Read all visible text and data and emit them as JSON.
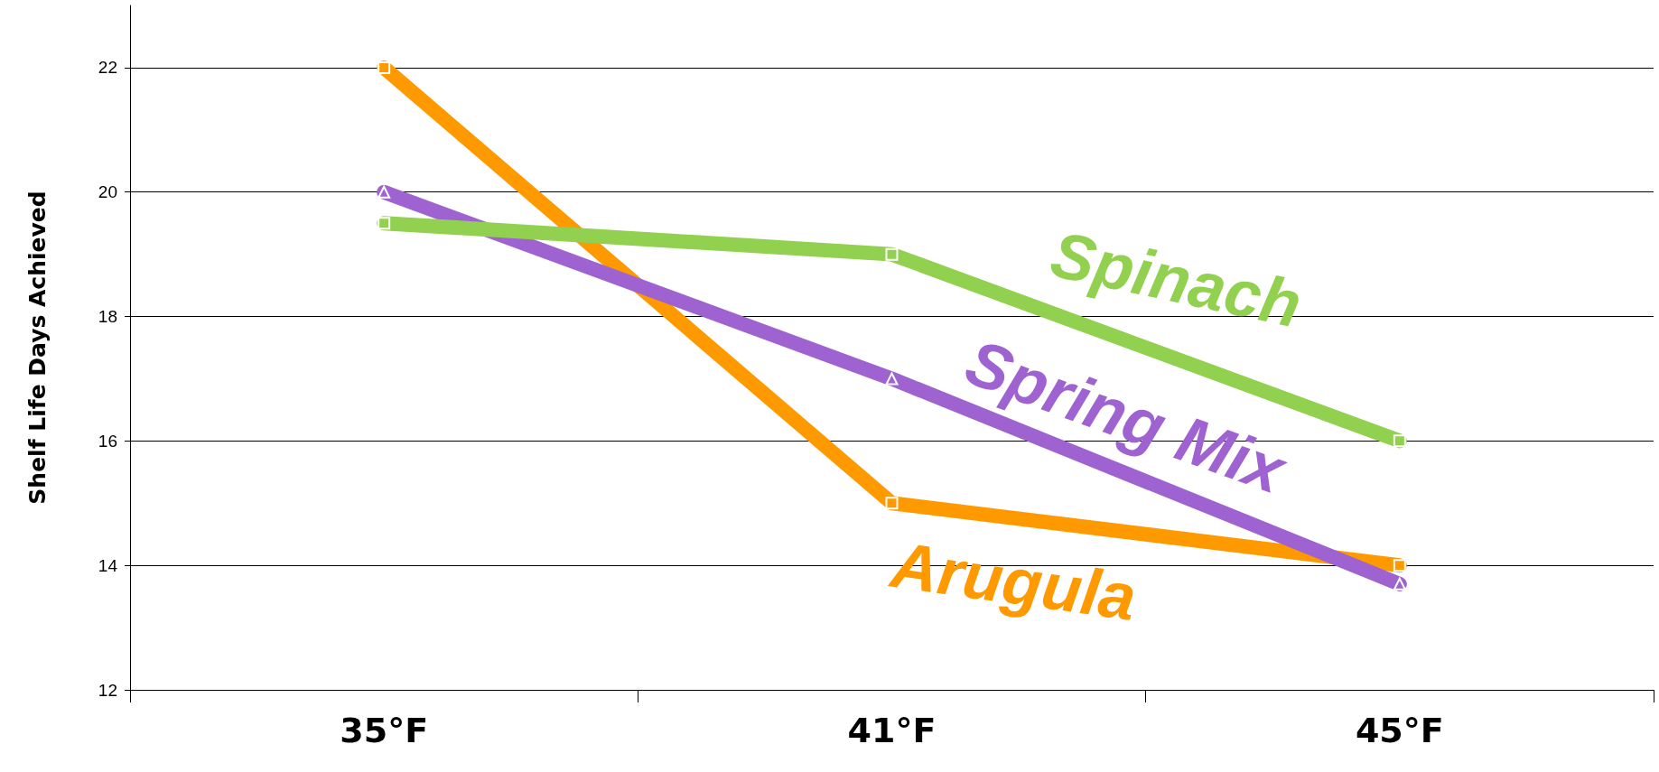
{
  "chart_data": {
    "type": "line",
    "ylabel": "Shelf Life Days Achieved",
    "categories": [
      "35°F",
      "41°F",
      "45°F"
    ],
    "series": [
      {
        "name": "Arugula",
        "color": "#ff9900",
        "marker": "square",
        "values": [
          22,
          15,
          14
        ]
      },
      {
        "name": "Spring Mix",
        "color": "#9e63d0",
        "marker": "triangle",
        "values": [
          20,
          17,
          13.7
        ]
      },
      {
        "name": "Spinach",
        "color": "#92d050",
        "marker": "square",
        "values": [
          19.5,
          19,
          16
        ]
      }
    ],
    "ylim": [
      12,
      23
    ],
    "yticks": [
      12,
      14,
      16,
      18,
      20,
      22
    ],
    "grid": "y",
    "legend": false
  }
}
